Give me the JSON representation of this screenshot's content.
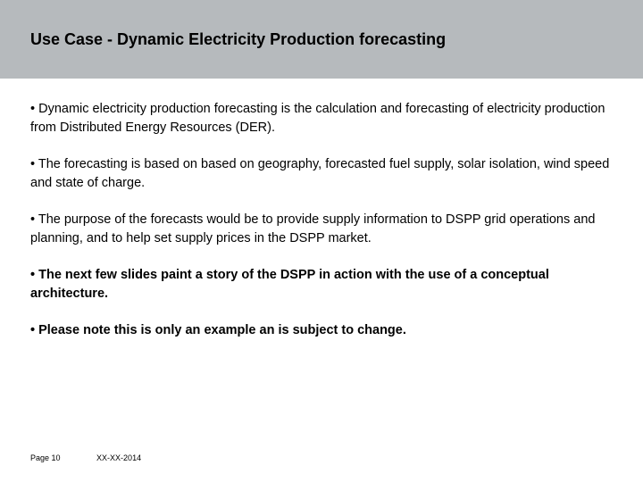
{
  "header": {
    "title": "Use Case - Dynamic Electricity Production forecasting",
    "background_color": "#b6babd",
    "title_fontsize": 18,
    "title_color": "#000000"
  },
  "bullets": [
    {
      "text": "• Dynamic electricity production forecasting is the calculation and forecasting of electricity production from Distributed Energy Resources (DER).",
      "bold": false
    },
    {
      "text": "• The forecasting is based on based on geography, forecasted fuel supply, solar isolation, wind speed and state of charge.",
      "bold": false
    },
    {
      "text": "• The purpose of the forecasts would be to provide supply information to DSPP grid operations and planning, and to help set supply prices in the DSPP market.",
      "bold": false
    },
    {
      "text": "• The next few slides paint a story of the DSPP in action with the use of a conceptual architecture.",
      "bold": true
    },
    {
      "text": "• Please note this is only an example an is subject to change.",
      "bold": true
    }
  ],
  "footer": {
    "page_label": "Page 10",
    "date_label": "XX-XX-2014",
    "fontsize": 9
  },
  "body": {
    "background_color": "#ffffff",
    "text_color": "#000000",
    "bullet_fontsize": 14.5
  }
}
